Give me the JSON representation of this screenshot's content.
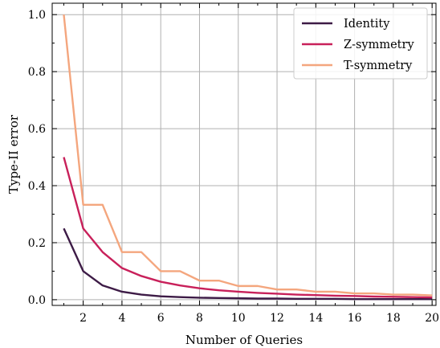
{
  "chart_data": {
    "type": "line",
    "xlabel": "Number of Queries",
    "ylabel": "Type-II error",
    "xlim": [
      0.4,
      20.2
    ],
    "ylim": [
      -0.02,
      1.04
    ],
    "x_ticks": [
      2,
      4,
      6,
      8,
      10,
      12,
      14,
      16,
      18,
      20
    ],
    "x_tick_labels": [
      "2",
      "4",
      "6",
      "8",
      "10",
      "12",
      "14",
      "16",
      "18",
      "20"
    ],
    "y_ticks": [
      0.0,
      0.2,
      0.4,
      0.6,
      0.8,
      1.0
    ],
    "y_tick_labels": [
      "0.0",
      "0.2",
      "0.4",
      "0.6",
      "0.8",
      "1.0"
    ],
    "grid": true,
    "legend_position": "top-right",
    "x": [
      1,
      2,
      3,
      4,
      5,
      6,
      7,
      8,
      9,
      10,
      11,
      12,
      13,
      14,
      15,
      16,
      17,
      18,
      19,
      20
    ],
    "series": [
      {
        "name": "Identity",
        "color": "#3d1b46",
        "values": [
          0.25,
          0.1,
          0.05,
          0.028,
          0.018,
          0.012,
          0.009,
          0.007,
          0.006,
          0.005,
          0.004,
          0.004,
          0.003,
          0.003,
          0.003,
          0.002,
          0.002,
          0.002,
          0.002,
          0.002
        ]
      },
      {
        "name": "Z-symmetry",
        "color": "#c8205a",
        "values": [
          0.5,
          0.25,
          0.167,
          0.111,
          0.083,
          0.063,
          0.05,
          0.04,
          0.033,
          0.028,
          0.024,
          0.021,
          0.018,
          0.016,
          0.014,
          0.013,
          0.011,
          0.01,
          0.009,
          0.008
        ]
      },
      {
        "name": "T-symmetry",
        "color": "#f4a67e",
        "values": [
          1.0,
          0.333,
          0.333,
          0.167,
          0.167,
          0.1,
          0.1,
          0.067,
          0.067,
          0.048,
          0.048,
          0.036,
          0.036,
          0.028,
          0.028,
          0.022,
          0.022,
          0.018,
          0.018,
          0.015
        ]
      }
    ]
  }
}
